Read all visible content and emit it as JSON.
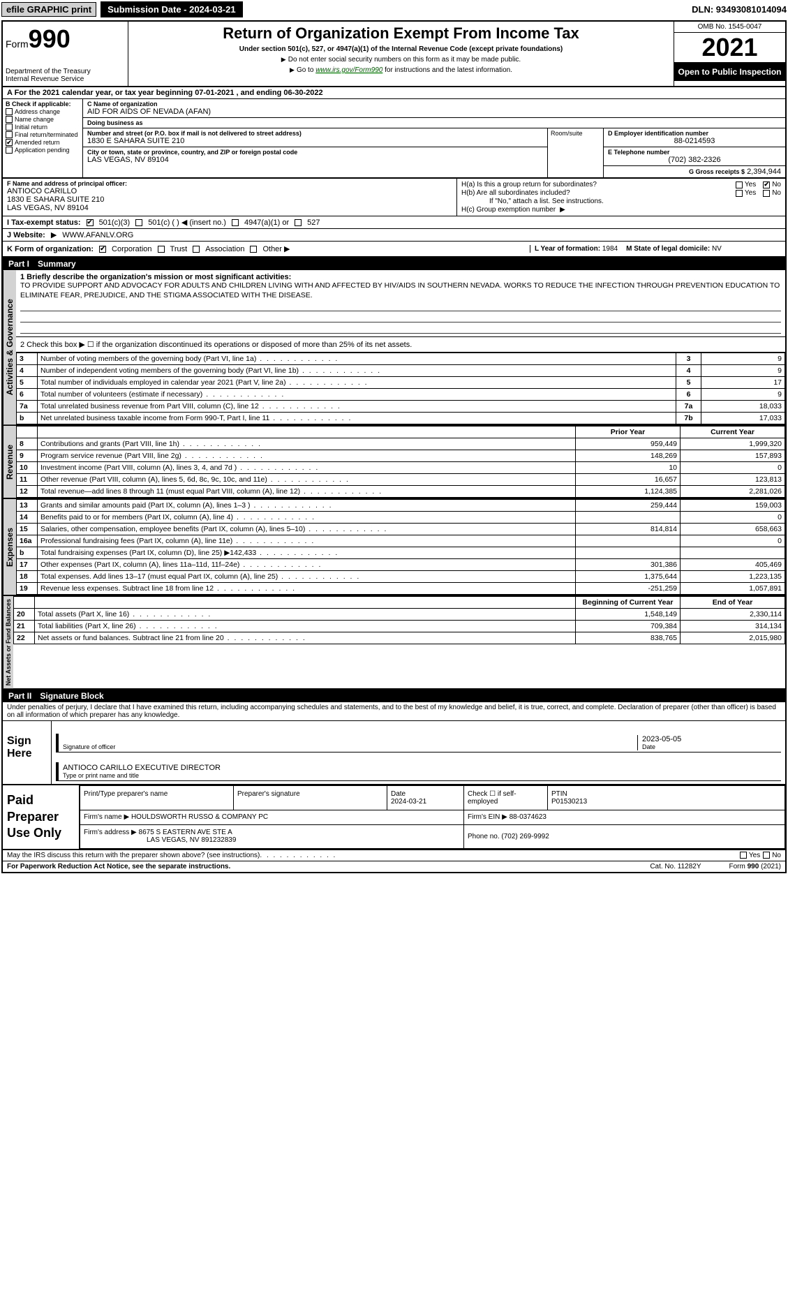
{
  "topbar": {
    "efile": "efile GRAPHIC print",
    "submission_label": "Submission Date - 2024-03-21",
    "dln": "DLN: 93493081014094"
  },
  "header": {
    "form_prefix": "Form",
    "form_number": "990",
    "dept": "Department of the Treasury\nInternal Revenue Service",
    "title": "Return of Organization Exempt From Income Tax",
    "subtitle": "Under section 501(c), 527, or 4947(a)(1) of the Internal Revenue Code (except private foundations)",
    "note1": "Do not enter social security numbers on this form as it may be made public.",
    "note2_prefix": "Go to ",
    "note2_link": "www.irs.gov/Form990",
    "note2_suffix": " for instructions and the latest information.",
    "omb": "OMB No. 1545-0047",
    "tax_year": "2021",
    "open": "Open to Public Inspection"
  },
  "row_a": "A For the 2021 calendar year, or tax year beginning 07-01-2021    , and ending 06-30-2022",
  "col_b": {
    "label": "B Check if applicable:",
    "opts": [
      "Address change",
      "Name change",
      "Initial return",
      "Final return/terminated",
      "Amended return",
      "Application pending"
    ],
    "checked_idx": 4
  },
  "col_c": {
    "name_label": "C Name of organization",
    "name": "AID FOR AIDS OF NEVADA (AFAN)",
    "dba_label": "Doing business as",
    "dba": "",
    "addr_label": "Number and street (or P.O. box if mail is not delivered to street address)",
    "addr": "1830 E SAHARA SUITE 210",
    "room_label": "Room/suite",
    "city_label": "City or town, state or province, country, and ZIP or foreign postal code",
    "city": "LAS VEGAS, NV  89104"
  },
  "col_d": {
    "label": "D Employer identification number",
    "val": "88-0214593"
  },
  "col_e": {
    "label": "E Telephone number",
    "val": "(702) 382-2326"
  },
  "col_g": {
    "label": "G Gross receipts $",
    "val": "2,394,944"
  },
  "col_f": {
    "label": "F  Name and address of principal officer:",
    "name": "ANTIOCO CARILLO",
    "addr1": "1830 E SAHARA SUITE 210",
    "addr2": "LAS VEGAS, NV  89104"
  },
  "col_h": {
    "a_label": "H(a)  Is this a group return for subordinates?",
    "a_yes": "Yes",
    "a_no": "No",
    "b_label": "H(b)  Are all subordinates included?",
    "b_note": "If \"No,\" attach a list. See instructions.",
    "c_label": "H(c)  Group exemption number"
  },
  "row_i": {
    "label": "I   Tax-exempt status:",
    "opts": [
      "501(c)(3)",
      "501(c) ( ) ◀ (insert no.)",
      "4947(a)(1) or",
      "527"
    ],
    "checked_idx": 0
  },
  "row_j": {
    "label": "J   Website:",
    "arrow": "▶",
    "val": "WWW.AFANLV.ORG"
  },
  "row_k": {
    "label": "K Form of organization:",
    "opts": [
      "Corporation",
      "Trust",
      "Association",
      "Other ▶"
    ],
    "checked_idx": 0,
    "l_label": "L Year of formation:",
    "l_val": "1984",
    "m_label": "M State of legal domicile:",
    "m_val": "NV"
  },
  "part1": {
    "title": "Part I",
    "name": "Summary",
    "band_ag": "Activities & Governance",
    "band_rev": "Revenue",
    "band_exp": "Expenses",
    "band_net": "Net Assets or Fund Balances",
    "q1_label": "1  Briefly describe the organization's mission or most significant activities:",
    "q1_text": "TO PROVIDE SUPPORT AND ADVOCACY FOR ADULTS AND CHILDREN LIVING WITH AND AFFECTED BY HIV/AIDS IN SOUTHERN NEVADA. WORKS TO REDUCE THE INFECTION THROUGH PREVENTION EDUCATION TO ELIMINATE FEAR, PREJUDICE, AND THE STIGMA ASSOCIATED WITH THE DISEASE.",
    "q2": "2   Check this box ▶ ☐  if the organization discontinued its operations or disposed of more than 25% of its net assets.",
    "lines_3_7": [
      {
        "n": "3",
        "d": "Number of voting members of the governing body (Part VI, line 1a)",
        "k": "3",
        "v": "9"
      },
      {
        "n": "4",
        "d": "Number of independent voting members of the governing body (Part VI, line 1b)",
        "k": "4",
        "v": "9"
      },
      {
        "n": "5",
        "d": "Total number of individuals employed in calendar year 2021 (Part V, line 2a)",
        "k": "5",
        "v": "17"
      },
      {
        "n": "6",
        "d": "Total number of volunteers (estimate if necessary)",
        "k": "6",
        "v": "9"
      },
      {
        "n": "7a",
        "d": "Total unrelated business revenue from Part VIII, column (C), line 12",
        "k": "7a",
        "v": "18,033"
      },
      {
        "n": "b",
        "d": "Net unrelated business taxable income from Form 990-T, Part I, line 11",
        "k": "7b",
        "v": "17,033"
      }
    ],
    "fin_hdr_prior": "Prior Year",
    "fin_hdr_curr": "Current Year",
    "rev_rows": [
      {
        "n": "8",
        "d": "Contributions and grants (Part VIII, line 1h)",
        "p": "959,449",
        "c": "1,999,320"
      },
      {
        "n": "9",
        "d": "Program service revenue (Part VIII, line 2g)",
        "p": "148,269",
        "c": "157,893"
      },
      {
        "n": "10",
        "d": "Investment income (Part VIII, column (A), lines 3, 4, and 7d )",
        "p": "10",
        "c": "0"
      },
      {
        "n": "11",
        "d": "Other revenue (Part VIII, column (A), lines 5, 6d, 8c, 9c, 10c, and 11e)",
        "p": "16,657",
        "c": "123,813"
      },
      {
        "n": "12",
        "d": "Total revenue—add lines 8 through 11 (must equal Part VIII, column (A), line 12)",
        "p": "1,124,385",
        "c": "2,281,026"
      }
    ],
    "exp_rows": [
      {
        "n": "13",
        "d": "Grants and similar amounts paid (Part IX, column (A), lines 1–3 )",
        "p": "259,444",
        "c": "159,003"
      },
      {
        "n": "14",
        "d": "Benefits paid to or for members (Part IX, column (A), line 4)",
        "p": "",
        "c": "0"
      },
      {
        "n": "15",
        "d": "Salaries, other compensation, employee benefits (Part IX, column (A), lines 5–10)",
        "p": "814,814",
        "c": "658,663"
      },
      {
        "n": "16a",
        "d": "Professional fundraising fees (Part IX, column (A), line 11e)",
        "p": "",
        "c": "0"
      },
      {
        "n": "b",
        "d": "Total fundraising expenses (Part IX, column (D), line 25) ▶142,433",
        "p": "SHADE",
        "c": "SHADE"
      },
      {
        "n": "17",
        "d": "Other expenses (Part IX, column (A), lines 11a–11d, 11f–24e)",
        "p": "301,386",
        "c": "405,469"
      },
      {
        "n": "18",
        "d": "Total expenses. Add lines 13–17 (must equal Part IX, column (A), line 25)",
        "p": "1,375,644",
        "c": "1,223,135"
      },
      {
        "n": "19",
        "d": "Revenue less expenses. Subtract line 18 from line 12",
        "p": "-251,259",
        "c": "1,057,891"
      }
    ],
    "net_hdr_beg": "Beginning of Current Year",
    "net_hdr_end": "End of Year",
    "net_rows": [
      {
        "n": "20",
        "d": "Total assets (Part X, line 16)",
        "p": "1,548,149",
        "c": "2,330,114"
      },
      {
        "n": "21",
        "d": "Total liabilities (Part X, line 26)",
        "p": "709,384",
        "c": "314,134"
      },
      {
        "n": "22",
        "d": "Net assets or fund balances. Subtract line 21 from line 20",
        "p": "838,765",
        "c": "2,015,980"
      }
    ]
  },
  "part2": {
    "title": "Part II",
    "name": "Signature Block",
    "penalty": "Under penalties of perjury, I declare that I have examined this return, including accompanying schedules and statements, and to the best of my knowledge and belief, it is true, correct, and complete. Declaration of preparer (other than officer) is based on all information of which preparer has any knowledge.",
    "sign_here": "Sign Here",
    "sig_officer": "Signature of officer",
    "sig_date_label": "Date",
    "sig_date": "2023-05-05",
    "sig_name": "ANTIOCO CARILLO  EXECUTIVE DIRECTOR",
    "sig_name_label": "Type or print name and title",
    "paid": "Paid Preparer Use Only",
    "pp_name_label": "Print/Type preparer's name",
    "pp_sig_label": "Preparer's signature",
    "pp_date_label": "Date",
    "pp_date": "2024-03-21",
    "pp_check_label": "Check ☐ if self-employed",
    "pp_ptin_label": "PTIN",
    "pp_ptin": "P01530213",
    "firm_name_label": "Firm's name  ▶",
    "firm_name": "HOULDSWORTH RUSSO & COMPANY PC",
    "firm_ein_label": "Firm's EIN ▶",
    "firm_ein": "88-0374623",
    "firm_addr_label": "Firm's address ▶",
    "firm_addr1": "8675 S EASTERN AVE STE A",
    "firm_addr2": "LAS VEGAS, NV  891232839",
    "firm_phone_label": "Phone no.",
    "firm_phone": "(702) 269-9992",
    "may_irs": "May the IRS discuss this return with the preparer shown above? (see instructions)",
    "paperwork": "For Paperwork Reduction Act Notice, see the separate instructions.",
    "cat": "Cat. No. 11282Y",
    "form_foot": "Form 990 (2021)"
  }
}
